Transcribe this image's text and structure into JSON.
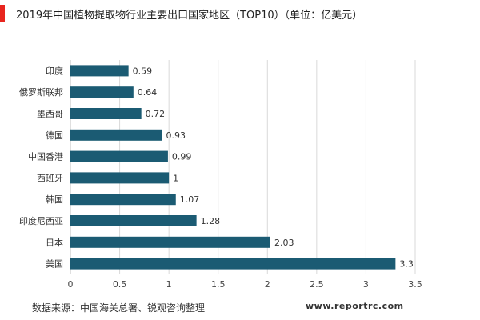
{
  "header": {
    "title": "2019年中国植物提取物行业主要出口国家地区（TOP10）（单位：亿美元）",
    "accent_color": "#e8251e"
  },
  "chart_data": {
    "type": "bar",
    "orientation": "horizontal",
    "title": "2019年中国植物提取物行业主要出口国家地区（TOP10）（单位：亿美元）",
    "categories": [
      "印度",
      "俄罗斯联邦",
      "墨西哥",
      "德国",
      "中国香港",
      "西班牙",
      "韩国",
      "印度尼西亚",
      "日本",
      "美国"
    ],
    "values": [
      0.59,
      0.64,
      0.72,
      0.93,
      0.99,
      1,
      1.07,
      1.28,
      2.03,
      3.3
    ],
    "value_labels": [
      "0.59",
      "0.64",
      "0.72",
      "0.93",
      "0.99",
      "1",
      "1.07",
      "1.28",
      "2.03",
      "3.3"
    ],
    "xlim": [
      0,
      3.5
    ],
    "x_ticks": [
      "0",
      "0.5",
      "1",
      "1.5",
      "2",
      "2.5",
      "3",
      "3.5"
    ],
    "xlabel": "",
    "ylabel": "",
    "grid": "vertical",
    "bar_color": "#1b5b73"
  },
  "footer": {
    "source": "数据来源：中国海关总署、锐观咨询整理",
    "website": "www.reportrc.com"
  }
}
